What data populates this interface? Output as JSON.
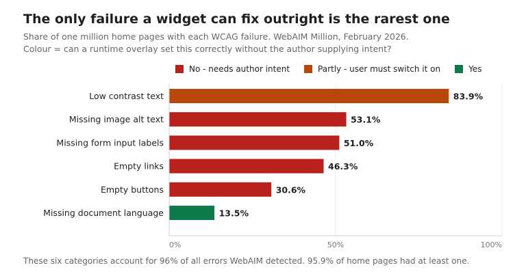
{
  "title": "The only failure a widget can fix outright is the rarest one",
  "subtitle_line1": "Share of one million home pages with each WCAG failure. WebAIM Million, February 2026.",
  "subtitle_line2": "Colour = can a runtime overlay set this correctly without the author supplying intent?",
  "legend": [
    {
      "label": "No - needs author intent",
      "color": "#b8211c"
    },
    {
      "label": "Partly - user must switch it on",
      "color": "#b8470c"
    },
    {
      "label": "Yes",
      "color": "#0f7a4a"
    }
  ],
  "footnote": "These six categories account for 96% of all errors WebAIM detected. 95.9% of home pages had at least one.",
  "chart_data": {
    "type": "bar",
    "orientation": "horizontal",
    "categories": [
      "Low contrast text",
      "Missing image alt text",
      "Missing form input labels",
      "Empty links",
      "Empty buttons",
      "Missing document language"
    ],
    "values": [
      83.9,
      53.1,
      51.0,
      46.3,
      30.6,
      13.5
    ],
    "value_labels": [
      "83.9%",
      "53.1%",
      "51.0%",
      "46.3%",
      "30.6%",
      "13.5%"
    ],
    "bar_colors": [
      "#b8470c",
      "#b8211c",
      "#b8211c",
      "#b8211c",
      "#b8211c",
      "#0f7a4a"
    ],
    "xlim": [
      0,
      100
    ],
    "x_ticks": [
      0,
      50,
      100
    ],
    "x_tick_labels": [
      "0%",
      "50%",
      "100%"
    ],
    "grid": "vertical"
  }
}
